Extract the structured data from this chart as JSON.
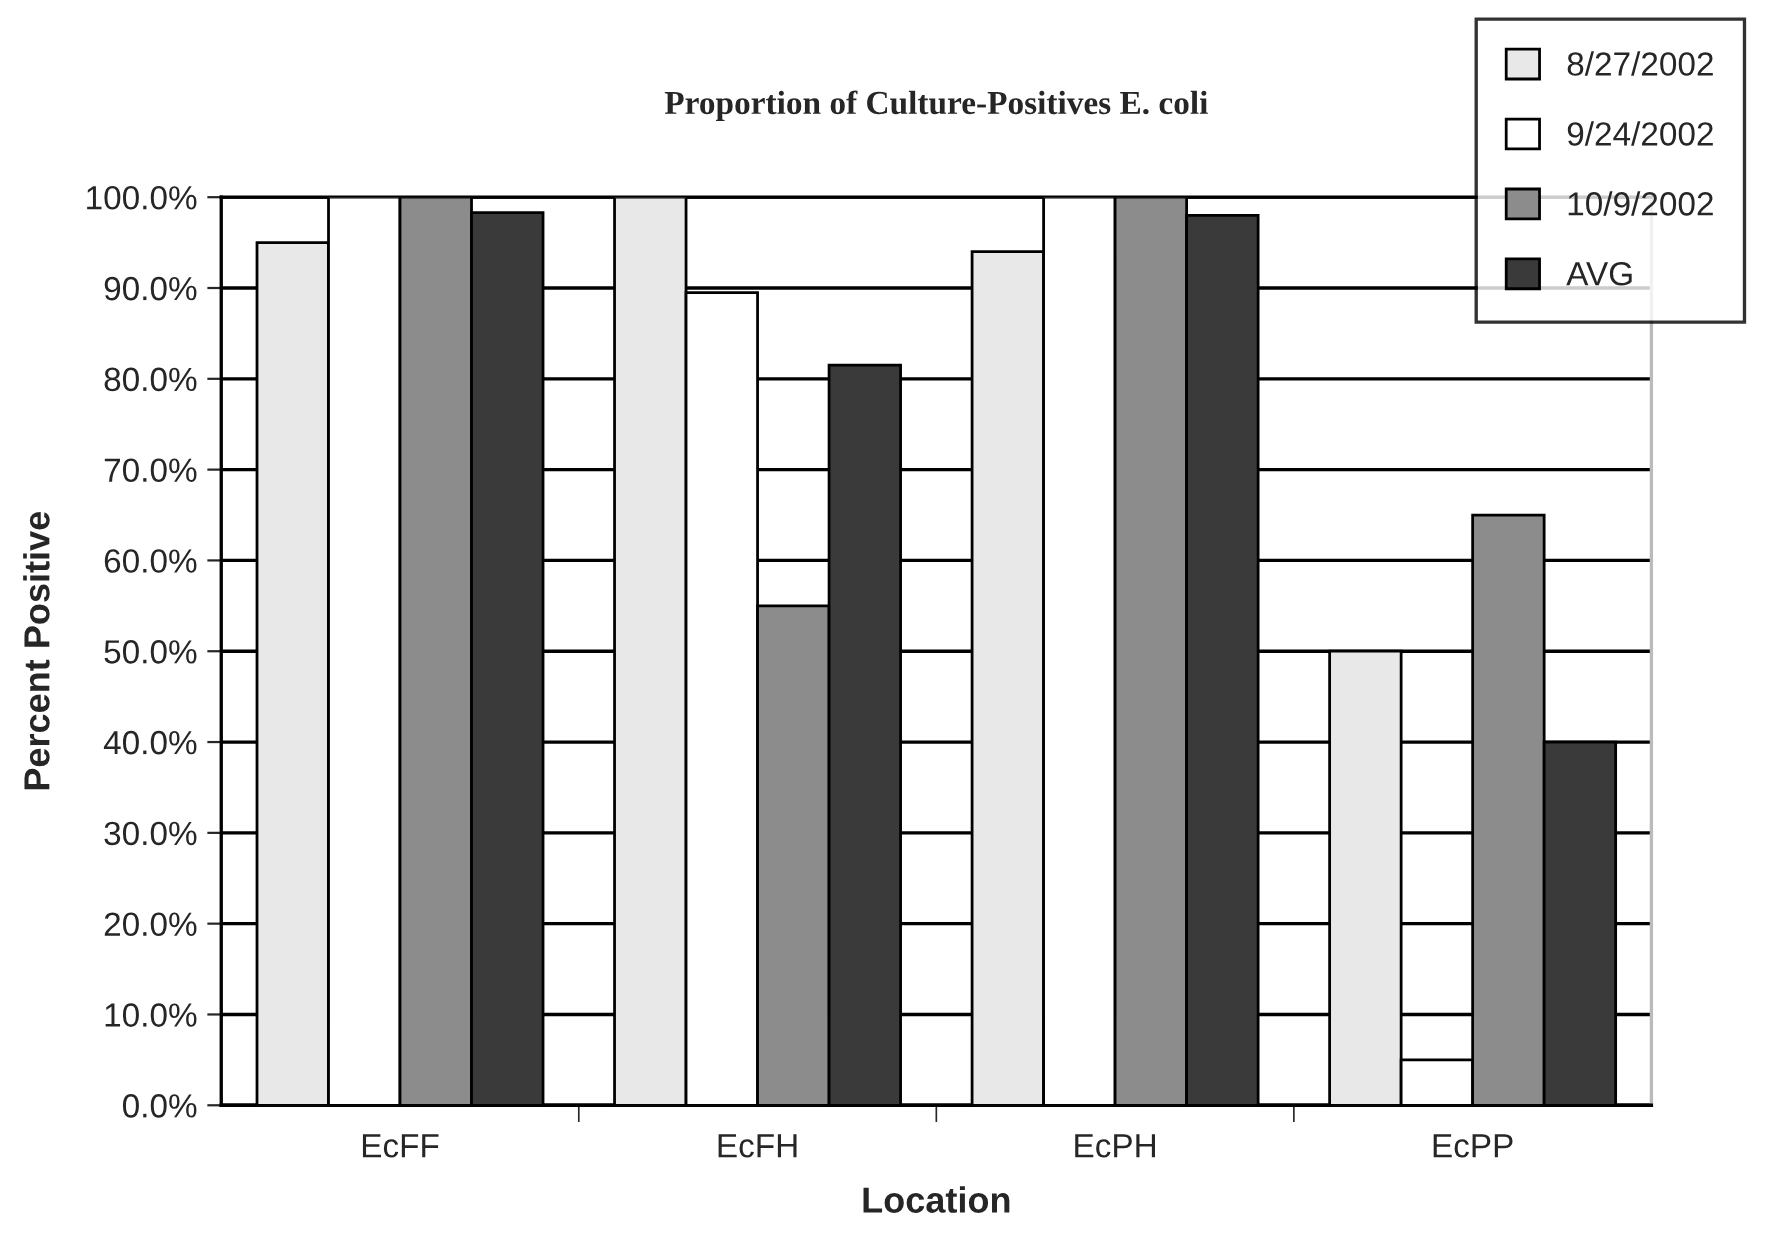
{
  "chart_data": {
    "type": "bar",
    "title": "Proportion of Culture-Positives E. coli",
    "xlabel": "Location",
    "ylabel": "Percent Positive",
    "categories": [
      "EcFF",
      "EcFH",
      "EcPH",
      "EcPP"
    ],
    "series": [
      {
        "name": "8/27/2002",
        "color": "#e8e8e8",
        "values": [
          95,
          100,
          94,
          50
        ]
      },
      {
        "name": "9/24/2002",
        "color": "#ffffff",
        "values": [
          100,
          89.5,
          100,
          5
        ]
      },
      {
        "name": "10/9/2002",
        "color": "#8c8c8c",
        "values": [
          100,
          55,
          100,
          65
        ]
      },
      {
        "name": "AVG",
        "color": "#3a3a3a",
        "values": [
          98.3,
          81.5,
          98,
          40
        ]
      }
    ],
    "ylim": [
      0,
      100
    ],
    "yticks": [
      {
        "value": 0,
        "label": "0.0%"
      },
      {
        "value": 10,
        "label": "10.0%"
      },
      {
        "value": 20,
        "label": "20.0%"
      },
      {
        "value": 30,
        "label": "30.0%"
      },
      {
        "value": 40,
        "label": "40.0%"
      },
      {
        "value": 50,
        "label": "50.0%"
      },
      {
        "value": 60,
        "label": "60.0%"
      },
      {
        "value": 70,
        "label": "70.0%"
      },
      {
        "value": 80,
        "label": "80.0%"
      },
      {
        "value": 90,
        "label": "90.0%"
      },
      {
        "value": 100,
        "label": "100.0%"
      }
    ],
    "grid": "y",
    "legend": "top right"
  }
}
